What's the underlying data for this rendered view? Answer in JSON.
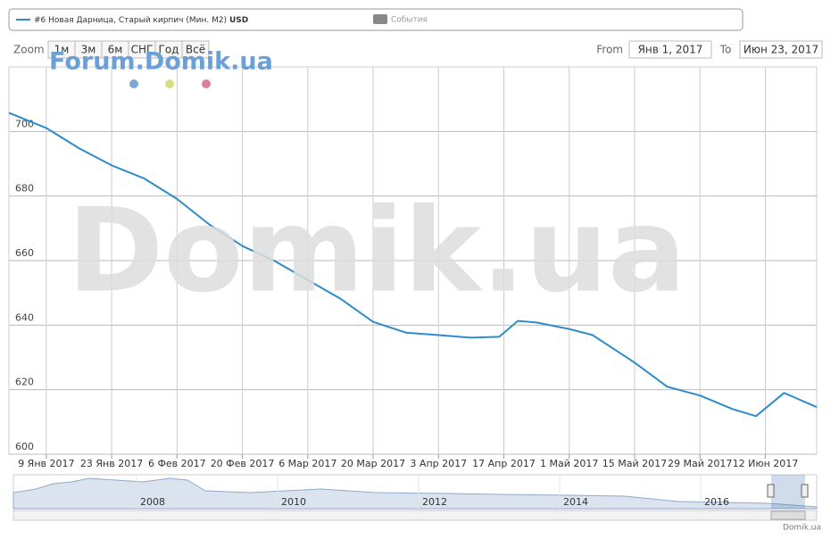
{
  "chart_data": {
    "type": "line",
    "series": [
      {
        "name": "#6 Новая Дарница, Старый кирпич (Мин. М2)",
        "unit": "USD",
        "color": "#2f8bc9",
        "values": [
          705.8,
          701.1,
          694.8,
          689.5,
          685.4,
          679.1,
          671.1,
          664.5,
          659.8,
          654,
          648.2,
          641,
          637.7,
          636.9,
          636.1,
          636.4,
          641.3,
          640.8,
          638.8,
          636.9,
          628.4,
          620.9,
          618.2,
          614,
          611.8,
          619,
          614.6
        ]
      }
    ],
    "x": [
      "2017-01-01",
      "2017-01-09",
      "2017-01-16",
      "2017-01-23",
      "2017-01-30",
      "2017-02-06",
      "2017-02-13",
      "2017-02-20",
      "2017-02-27",
      "2017-03-06",
      "2017-03-13",
      "2017-03-20",
      "2017-03-27",
      "2017-04-03",
      "2017-04-10",
      "2017-04-16",
      "2017-04-20",
      "2017-04-24",
      "2017-05-01",
      "2017-05-06",
      "2017-05-15",
      "2017-05-22",
      "2017-05-29",
      "2017-06-05",
      "2017-06-10",
      "2017-06-16",
      "2017-06-23"
    ],
    "xlim": [
      "2017-01-01",
      "2017-06-23"
    ],
    "xticks": [
      {
        "value": "2017-01-09",
        "label": "9 Янв 2017"
      },
      {
        "value": "2017-01-23",
        "label": "23 Янв 2017"
      },
      {
        "value": "2017-02-06",
        "label": "6 Фев 2017"
      },
      {
        "value": "2017-02-20",
        "label": "20 Фев 2017"
      },
      {
        "value": "2017-03-06",
        "label": "6 Мар 2017"
      },
      {
        "value": "2017-03-20",
        "label": "20 Мар 2017"
      },
      {
        "value": "2017-04-03",
        "label": "3 Апр 2017"
      },
      {
        "value": "2017-04-17",
        "label": "17 Апр 2017"
      },
      {
        "value": "2017-05-01",
        "label": "1 Май 2017"
      },
      {
        "value": "2017-05-15",
        "label": "15 Май 2017"
      },
      {
        "value": "2017-05-29",
        "label": "29 Май 2017"
      },
      {
        "value": "2017-06-12",
        "label": "12 Июн 2017"
      }
    ],
    "ylim": [
      600,
      720
    ],
    "yticks": [
      600,
      620,
      640,
      660,
      680,
      700
    ],
    "grid": true
  },
  "events_legend": "События",
  "zoom": {
    "label": "Zoom",
    "buttons": [
      "1м",
      "3м",
      "6м",
      "СНГ",
      "Год",
      "Всё"
    ]
  },
  "range": {
    "from_label": "From",
    "from": "Янв 1, 2017",
    "to_label": "To",
    "to": "Июн 23, 2017"
  },
  "watermarks": [
    "Forum.Domik.ua",
    "Domik.ua"
  ],
  "navigator": {
    "years": [
      "2008",
      "2010",
      "2012",
      "2014",
      "2016"
    ]
  },
  "credit": "Domik.ua"
}
